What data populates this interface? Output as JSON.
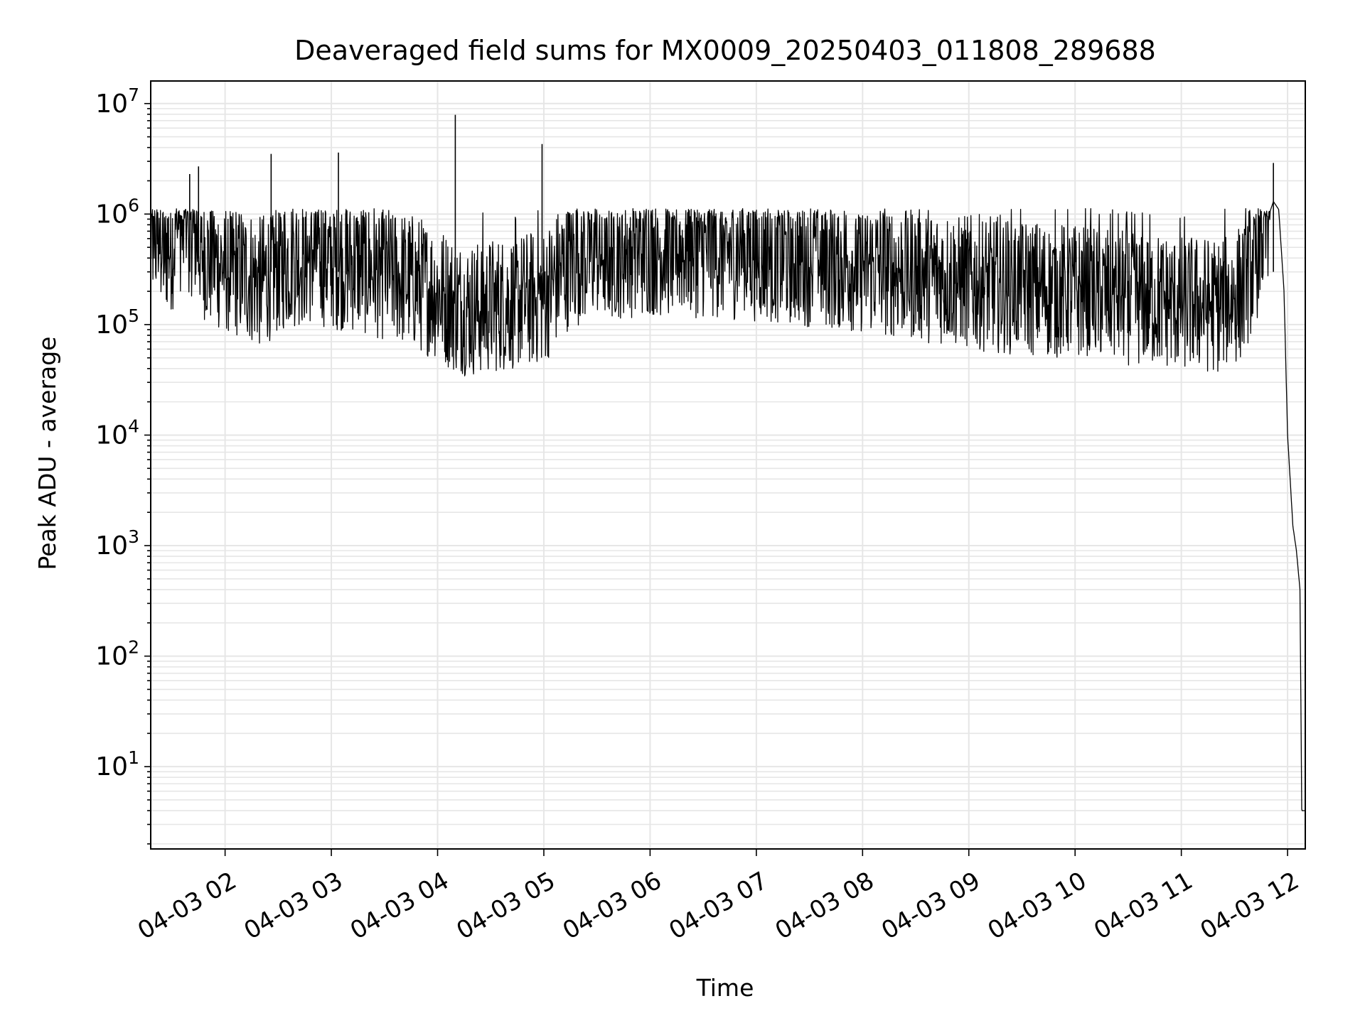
{
  "chart_data": {
    "type": "line",
    "title": "Deaveraged field sums for MX0009_20250403_011808_289688",
    "xlabel": "Time",
    "ylabel": "Peak ADU - average",
    "yscale": "log",
    "ylim": [
      1.8,
      16000000
    ],
    "xlim": [
      "2025-04-03 01:18",
      "2025-04-03 12:10"
    ],
    "grid": true,
    "grid_minor": true,
    "line_color": "#000000",
    "grid_color": "#e6e6e6",
    "x_tick_labels": [
      "04-03 02",
      "04-03 03",
      "04-03 04",
      "04-03 05",
      "04-03 06",
      "04-03 07",
      "04-03 08",
      "04-03 09",
      "04-03 10",
      "04-03 11",
      "04-03 12"
    ],
    "x_ticks": [
      "2025-04-03 02:00",
      "2025-04-03 03:00",
      "2025-04-03 04:00",
      "2025-04-03 05:00",
      "2025-04-03 06:00",
      "2025-04-03 07:00",
      "2025-04-03 08:00",
      "2025-04-03 09:00",
      "2025-04-03 10:00",
      "2025-04-03 11:00",
      "2025-04-03 12:00"
    ],
    "y_ticks": [
      {
        "base": "10",
        "exp": "1",
        "value": 10
      },
      {
        "base": "10",
        "exp": "2",
        "value": 100
      },
      {
        "base": "10",
        "exp": "3",
        "value": 1000
      },
      {
        "base": "10",
        "exp": "4",
        "value": 10000
      },
      {
        "base": "10",
        "exp": "5",
        "value": 100000
      },
      {
        "base": "10",
        "exp": "6",
        "value": 1000000
      },
      {
        "base": "10",
        "exp": "7",
        "value": 10000000
      }
    ],
    "series": [
      {
        "x": [
          "2025-04-03 01:18",
          "2025-04-03 01:25",
          "2025-04-03 01:30",
          "2025-04-03 01:36",
          "2025-04-03 01:40",
          "2025-04-03 01:45",
          "2025-04-03 01:50",
          "2025-04-03 02:00",
          "2025-04-03 02:10",
          "2025-04-03 02:20",
          "2025-04-03 02:30",
          "2025-04-03 02:40",
          "2025-04-03 02:50",
          "2025-04-03 03:00",
          "2025-04-03 03:15",
          "2025-04-03 03:30",
          "2025-04-03 03:45",
          "2025-04-03 04:00",
          "2025-04-03 04:10",
          "2025-04-03 04:20",
          "2025-04-03 04:40",
          "2025-04-03 05:00",
          "2025-04-03 05:15",
          "2025-04-03 05:30",
          "2025-04-03 06:00",
          "2025-04-03 06:30",
          "2025-04-03 07:00",
          "2025-04-03 07:30",
          "2025-04-03 08:00",
          "2025-04-03 08:30",
          "2025-04-03 09:00",
          "2025-04-03 09:30",
          "2025-04-03 10:00",
          "2025-04-03 10:30",
          "2025-04-03 11:00",
          "2025-04-03 11:20",
          "2025-04-03 11:35",
          "2025-04-03 11:45",
          "2025-04-03 11:52",
          "2025-04-03 11:55",
          "2025-04-03 11:58",
          "2025-04-03 12:00",
          "2025-04-03 12:03",
          "2025-04-03 12:05",
          "2025-04-03 12:07",
          "2025-04-03 12:08",
          "2025-04-03 12:10"
        ],
        "y": [
          700000,
          500000,
          550000,
          900000,
          800000,
          600000,
          400000,
          350000,
          300000,
          250000,
          350000,
          400000,
          420000,
          380000,
          350000,
          300000,
          250000,
          200000,
          150000,
          140000,
          160000,
          180000,
          400000,
          450000,
          500000,
          480000,
          450000,
          400000,
          350000,
          300000,
          250000,
          220000,
          200000,
          180000,
          160000,
          150000,
          200000,
          600000,
          1300000,
          1100000,
          200000,
          10000,
          1500,
          900,
          400,
          4,
          4
        ],
        "spikes": [
          {
            "x": "2025-04-03 01:40",
            "y": 2300000
          },
          {
            "x": "2025-04-03 01:45",
            "y": 2700000
          },
          {
            "x": "2025-04-03 02:26",
            "y": 3500000
          },
          {
            "x": "2025-04-03 03:04",
            "y": 3600000
          },
          {
            "x": "2025-04-03 04:10",
            "y": 7900000
          },
          {
            "x": "2025-04-03 04:59",
            "y": 4300000
          },
          {
            "x": "2025-04-03 11:52",
            "y": 2900000
          }
        ]
      }
    ]
  }
}
